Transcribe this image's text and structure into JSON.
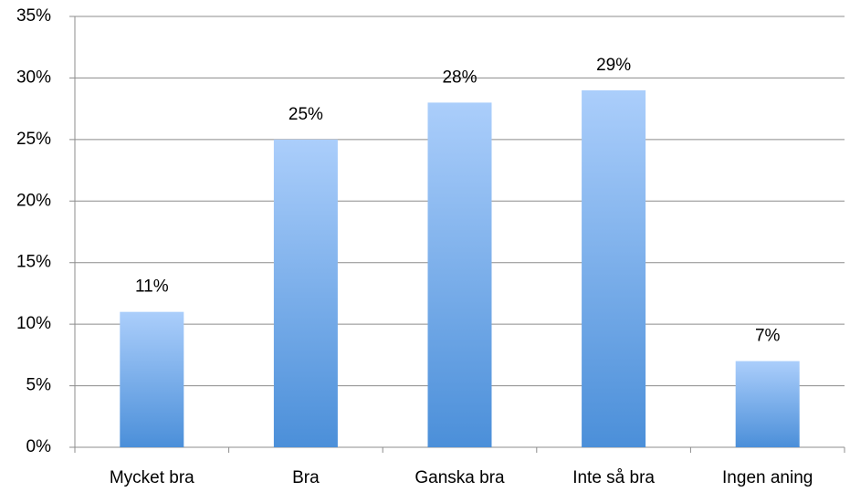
{
  "chart_data": {
    "type": "bar",
    "categories": [
      "Mycket bra",
      "Bra",
      "Ganska bra",
      "Inte så bra",
      "Ingen aning"
    ],
    "values": [
      11,
      25,
      28,
      29,
      7
    ],
    "value_labels": [
      "11%",
      "25%",
      "28%",
      "29%",
      "7%"
    ],
    "color": [
      "#abcefb",
      "#4b8fd9"
    ],
    "ylim": [
      0,
      35
    ],
    "yticks": [
      {
        "value": 0,
        "label": "0%"
      },
      {
        "value": 5,
        "label": "5%"
      },
      {
        "value": 10,
        "label": "10%"
      },
      {
        "value": 15,
        "label": "15%"
      },
      {
        "value": 20,
        "label": "20%"
      },
      {
        "value": 25,
        "label": "25%"
      },
      {
        "value": 30,
        "label": "30%"
      },
      {
        "value": 35,
        "label": "35%"
      }
    ],
    "grid": true
  }
}
